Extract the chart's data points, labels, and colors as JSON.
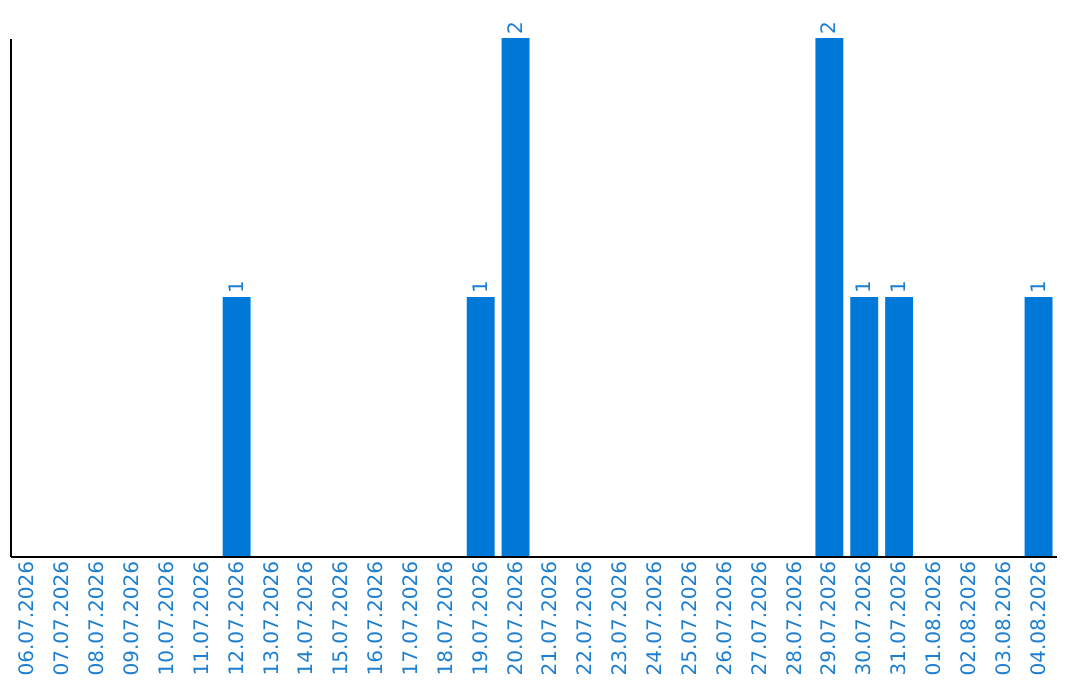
{
  "chart_data": {
    "type": "bar",
    "categories": [
      "06.07.2026",
      "07.07.2026",
      "08.07.2026",
      "09.07.2026",
      "10.07.2026",
      "11.07.2026",
      "12.07.2026",
      "13.07.2026",
      "14.07.2026",
      "15.07.2026",
      "16.07.2026",
      "17.07.2026",
      "18.07.2026",
      "19.07.2026",
      "20.07.2026",
      "21.07.2026",
      "22.07.2026",
      "23.07.2026",
      "24.07.2026",
      "25.07.2026",
      "26.07.2026",
      "27.07.2026",
      "28.07.2026",
      "29.07.2026",
      "30.07.2026",
      "31.07.2026",
      "01.08.2026",
      "02.08.2026",
      "03.08.2026",
      "04.08.2026"
    ],
    "values": [
      0,
      0,
      0,
      0,
      0,
      0,
      1,
      0,
      0,
      0,
      0,
      0,
      0,
      1,
      2,
      0,
      0,
      0,
      0,
      0,
      0,
      0,
      0,
      2,
      1,
      1,
      0,
      0,
      0,
      1
    ],
    "value_labels": [
      null,
      null,
      null,
      null,
      null,
      null,
      "1",
      null,
      null,
      null,
      null,
      null,
      null,
      "1",
      "2",
      null,
      null,
      null,
      null,
      null,
      null,
      null,
      null,
      "2",
      "1",
      "1",
      null,
      null,
      null,
      "1"
    ],
    "color": "#0078d7",
    "ylim": [
      0,
      2
    ],
    "tick_labels": "x",
    "grid": false
  }
}
